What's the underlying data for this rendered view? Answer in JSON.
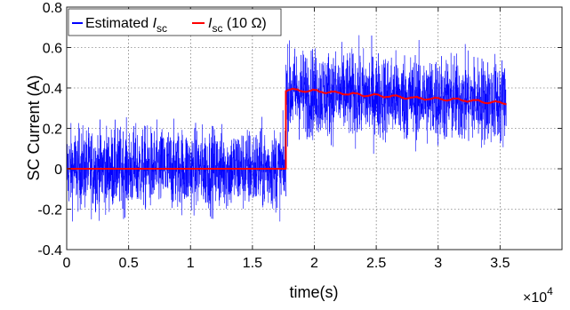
{
  "chart_data": {
    "type": "line",
    "title": "",
    "xlabel": "time(s)",
    "ylabel": "SC Current (A)",
    "xlim": [
      0,
      40000
    ],
    "ylim": [
      -0.4,
      0.8
    ],
    "x_ticks": [
      0,
      5000,
      10000,
      15000,
      20000,
      25000,
      30000,
      35000
    ],
    "x_tick_labels": [
      "0",
      "0.5",
      "1",
      "1.5",
      "2",
      "2.5",
      "3",
      "3.5"
    ],
    "x_scale_label": "×10",
    "x_scale_exponent": "4",
    "y_ticks": [
      -0.4,
      -0.2,
      0,
      0.2,
      0.4,
      0.6,
      0.8
    ],
    "y_tick_labels": [
      "-0.4",
      "-0.2",
      "0",
      "0.2",
      "0.4",
      "0.6",
      "0.8"
    ],
    "grid": true,
    "legend_position": "top-left",
    "series": [
      {
        "name": "Estimated I_sc",
        "legend_prefix": "Estimated ",
        "legend_symbol": "I",
        "legend_sub": "sc",
        "legend_suffix": "",
        "color": "#0000ff",
        "style": "noisy",
        "segments": [
          {
            "x_start": 0,
            "x_end": 17700,
            "mean_start": 0.0,
            "mean_end": 0.0,
            "min": -0.31,
            "max": 0.29
          },
          {
            "x_start": 17700,
            "x_end": 35500,
            "mean_start": 0.38,
            "mean_end": 0.33,
            "min": 0.05,
            "max": 0.69
          }
        ]
      },
      {
        "name": "I_sc (10 Ω)",
        "legend_prefix": "",
        "legend_symbol": "I",
        "legend_sub": "sc",
        "legend_suffix": " (10 Ω)",
        "color": "#ff0000",
        "style": "line",
        "x": [
          0,
          17700,
          17700,
          18000,
          20000,
          22000,
          24000,
          26000,
          28000,
          30000,
          32000,
          34000,
          35500
        ],
        "y": [
          0,
          0,
          0.39,
          0.39,
          0.385,
          0.375,
          0.365,
          0.36,
          0.35,
          0.345,
          0.34,
          0.33,
          0.325
        ]
      }
    ]
  }
}
